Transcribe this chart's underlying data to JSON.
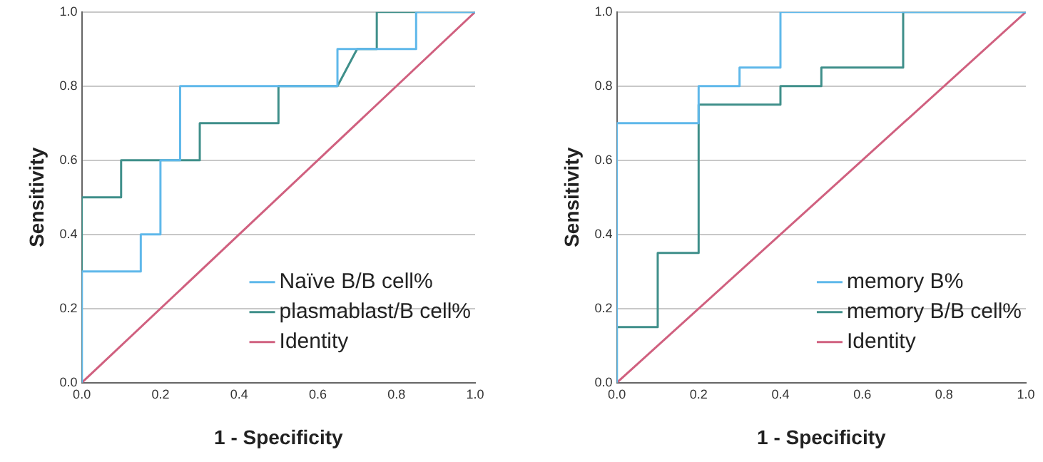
{
  "chart_data": [
    {
      "type": "line",
      "xlabel": "1 - Specificity",
      "ylabel": "Sensitivity",
      "xlim": [
        0,
        1
      ],
      "ylim": [
        0,
        1
      ],
      "xticks": [
        {
          "value": 0,
          "label": "0.0"
        },
        {
          "value": 0.2,
          "label": "0.2"
        },
        {
          "value": 0.4,
          "label": "0.4"
        },
        {
          "value": 0.6,
          "label": "0.6"
        },
        {
          "value": 0.8,
          "label": "0.8"
        },
        {
          "value": 1,
          "label": "1.0"
        }
      ],
      "yticks": [
        {
          "value": 0,
          "label": "0.0"
        },
        {
          "value": 0.2,
          "label": "0.2"
        },
        {
          "value": 0.4,
          "label": "0.4"
        },
        {
          "value": 0.6,
          "label": "0.6"
        },
        {
          "value": 0.8,
          "label": "0.8"
        },
        {
          "value": 1,
          "label": "1.0"
        }
      ],
      "grid": "y",
      "legend": "bottom right",
      "marker": "none",
      "line_style": "solid",
      "series": [
        {
          "name": "Naïve B/B cell%",
          "color": "#5fb8ea",
          "x": [
            0,
            0,
            0.15,
            0.15,
            0.2,
            0.2,
            0.25,
            0.25,
            0.65,
            0.65,
            0.85,
            0.85,
            1
          ],
          "values": [
            0,
            0.3,
            0.3,
            0.4,
            0.4,
            0.6,
            0.6,
            0.8,
            0.8,
            0.9,
            0.9,
            1,
            1
          ]
        },
        {
          "name": "plasmablast/B cell%",
          "color": "#3f8f8a",
          "x": [
            0,
            0,
            0.1,
            0.1,
            0.3,
            0.3,
            0.5,
            0.5,
            0.65,
            0.7,
            0.75,
            0.75,
            1
          ],
          "values": [
            0,
            0.5,
            0.5,
            0.6,
            0.6,
            0.7,
            0.7,
            0.8,
            0.8,
            0.9,
            0.9,
            1,
            1
          ]
        },
        {
          "name": "Identity",
          "color": "#d0607f",
          "x": [
            0,
            1
          ],
          "values": [
            0,
            1
          ]
        }
      ]
    },
    {
      "type": "line",
      "xlabel": "1 - Specificity",
      "ylabel": "Sensitivity",
      "xlim": [
        0,
        1
      ],
      "ylim": [
        0,
        1
      ],
      "xticks": [
        {
          "value": 0,
          "label": "0.0"
        },
        {
          "value": 0.2,
          "label": "0.2"
        },
        {
          "value": 0.4,
          "label": "0.4"
        },
        {
          "value": 0.6,
          "label": "0.6"
        },
        {
          "value": 0.8,
          "label": "0.8"
        },
        {
          "value": 1,
          "label": "1.0"
        }
      ],
      "yticks": [
        {
          "value": 0,
          "label": "0.0"
        },
        {
          "value": 0.2,
          "label": "0.2"
        },
        {
          "value": 0.4,
          "label": "0.4"
        },
        {
          "value": 0.6,
          "label": "0.6"
        },
        {
          "value": 0.8,
          "label": "0.8"
        },
        {
          "value": 1,
          "label": "1.0"
        }
      ],
      "grid": "y",
      "legend": "bottom right",
      "marker": "none",
      "line_style": "solid",
      "series": [
        {
          "name": "memory B%",
          "color": "#5fb8ea",
          "x": [
            0,
            0,
            0.2,
            0.2,
            0.3,
            0.3,
            0.4,
            0.4,
            1
          ],
          "values": [
            0,
            0.7,
            0.7,
            0.8,
            0.8,
            0.85,
            0.85,
            1,
            1
          ]
        },
        {
          "name": "memory B/B cell%",
          "color": "#3f8f8a",
          "x": [
            0,
            0,
            0.1,
            0.1,
            0.2,
            0.2,
            0.4,
            0.4,
            0.5,
            0.5,
            0.7,
            0.7,
            1
          ],
          "values": [
            0,
            0.15,
            0.15,
            0.35,
            0.35,
            0.75,
            0.75,
            0.8,
            0.8,
            0.85,
            0.85,
            1,
            1
          ]
        },
        {
          "name": "Identity",
          "color": "#d0607f",
          "x": [
            0,
            1
          ],
          "values": [
            0,
            1
          ]
        }
      ]
    }
  ]
}
